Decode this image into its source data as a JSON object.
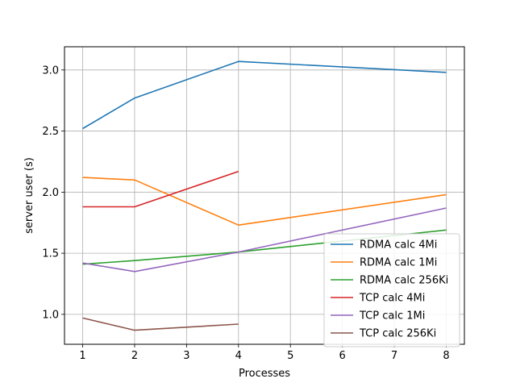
{
  "chart_data": {
    "type": "line",
    "title": "",
    "xlabel": "Processes",
    "ylabel": "server user (s)",
    "xlim": [
      0.65,
      8.35
    ],
    "ylim": [
      0.755,
      3.19
    ],
    "xticks": [
      1,
      2,
      3,
      4,
      5,
      6,
      7,
      8
    ],
    "yticks": [
      1.0,
      1.5,
      2.0,
      2.5,
      3.0
    ],
    "ytick_labels": [
      "1.0",
      "1.5",
      "2.0",
      "2.5",
      "3.0"
    ],
    "grid": true,
    "legend_position": "lower-right",
    "series": [
      {
        "name": "RDMA calc 4Mi",
        "color": "#1f77b4",
        "x": [
          1,
          2,
          4,
          8
        ],
        "values": [
          2.52,
          2.77,
          3.07,
          2.98
        ]
      },
      {
        "name": "RDMA calc 1Mi",
        "color": "#ff7f0e",
        "x": [
          1,
          2,
          4,
          8
        ],
        "values": [
          2.12,
          2.1,
          1.73,
          1.98
        ]
      },
      {
        "name": "RDMA calc 256Ki",
        "color": "#2ca02c",
        "x": [
          1,
          2,
          4,
          8
        ],
        "values": [
          1.41,
          1.44,
          1.51,
          1.69
        ]
      },
      {
        "name": "TCP calc 4Mi",
        "color": "#d62728",
        "x": [
          1,
          2,
          4
        ],
        "values": [
          1.88,
          1.88,
          2.17
        ]
      },
      {
        "name": "TCP calc 1Mi",
        "color": "#9467bd",
        "x": [
          1,
          2,
          4,
          8
        ],
        "values": [
          1.42,
          1.35,
          1.51,
          1.87
        ]
      },
      {
        "name": "TCP calc 256Ki",
        "color": "#8c564b",
        "x": [
          1,
          2,
          4
        ],
        "values": [
          0.97,
          0.87,
          0.92
        ]
      }
    ]
  }
}
